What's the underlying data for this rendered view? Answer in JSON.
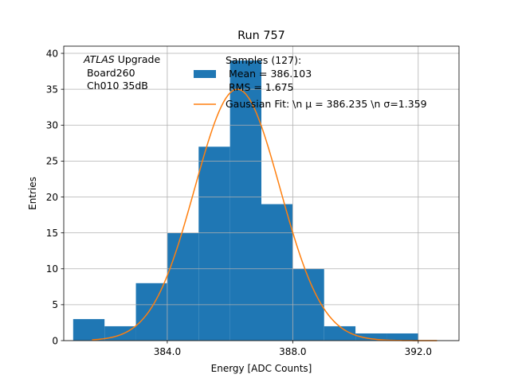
{
  "chart_data": {
    "type": "bar",
    "title": "Run 757",
    "xlabel": "Energy [ADC Counts]",
    "ylabel": "Entries",
    "xlim": [
      380.7,
      393.3
    ],
    "ylim": [
      0,
      41
    ],
    "grid": true,
    "xticks": [
      384,
      388,
      392
    ],
    "xtick_labels": [
      "384.0",
      "388.0",
      "392.0"
    ],
    "yticks": [
      0,
      5,
      10,
      15,
      20,
      25,
      30,
      35,
      40
    ],
    "ytick_labels": [
      "0",
      "5",
      "10",
      "15",
      "20",
      "25",
      "30",
      "35",
      "40"
    ],
    "histogram": {
      "bin_edges": [
        381,
        382,
        383,
        384,
        385,
        386,
        387,
        388,
        389,
        390,
        391,
        392
      ],
      "counts": [
        3,
        2,
        8,
        15,
        27,
        39,
        19,
        10,
        2,
        1,
        1
      ],
      "color": "#1f77b4"
    },
    "fit": {
      "mu": 386.235,
      "sigma": 1.359,
      "amplitude": 35,
      "x_range": [
        381.6,
        392.6
      ],
      "color": "#ff7f0e"
    },
    "legend": {
      "location": "top-right",
      "hist_label_lines": [
        "Samples (127):",
        " Mean = 386.103",
        " RMS = 1.675"
      ],
      "fit_label": "Gaussian Fit: \\n μ = 386.235 \\n σ=1.359"
    },
    "annotation": {
      "location": "top-left",
      "experiment": "ATLAS",
      "line1_suffix": " Upgrade",
      "line2": " Board260",
      "line3": " Ch010 35dB"
    }
  }
}
